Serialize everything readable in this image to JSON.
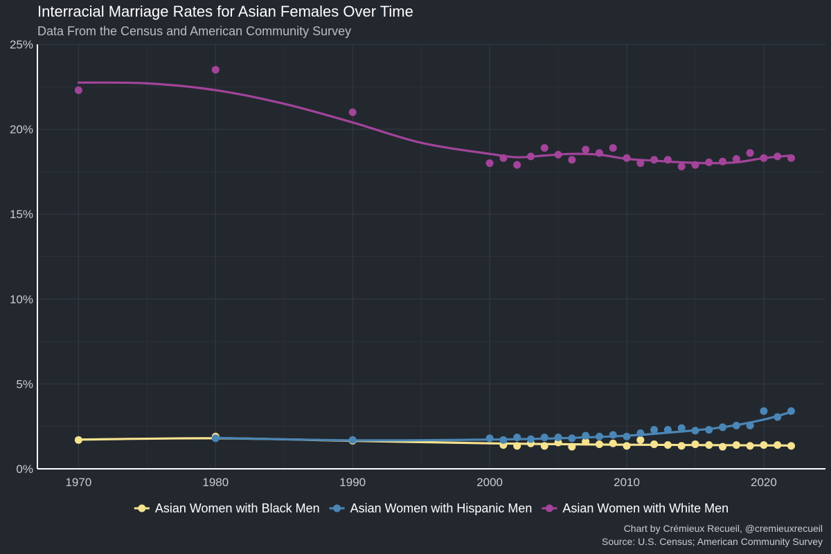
{
  "chart_data": {
    "type": "scatter",
    "title": "Interracial Marriage Rates for Asian Females Over Time",
    "subtitle": "Data From the Census and American Community Survey",
    "xlabel": "",
    "ylabel": "",
    "xlim": [
      1967,
      2024.5
    ],
    "ylim": [
      0,
      25
    ],
    "x_ticks": [
      1970,
      1980,
      1990,
      2000,
      2010,
      2020
    ],
    "y_ticks": [
      0,
      5,
      10,
      15,
      20,
      25
    ],
    "y_tick_labels": [
      "0%",
      "5%",
      "10%",
      "15%",
      "20%",
      "25%"
    ],
    "grid": true,
    "legend_position": "bottom",
    "series": [
      {
        "name": "Asian Women with Black Men",
        "color": "#f7e38f",
        "points": [
          [
            1970,
            1.7
          ],
          [
            1980,
            1.9
          ],
          [
            1990,
            1.65
          ],
          [
            2001,
            1.4
          ],
          [
            2002,
            1.35
          ],
          [
            2003,
            1.5
          ],
          [
            2004,
            1.35
          ],
          [
            2005,
            1.55
          ],
          [
            2006,
            1.3
          ],
          [
            2007,
            1.6
          ],
          [
            2008,
            1.45
          ],
          [
            2009,
            1.5
          ],
          [
            2010,
            1.35
          ],
          [
            2011,
            1.7
          ],
          [
            2012,
            1.45
          ],
          [
            2013,
            1.4
          ],
          [
            2014,
            1.35
          ],
          [
            2015,
            1.45
          ],
          [
            2016,
            1.4
          ],
          [
            2017,
            1.3
          ],
          [
            2018,
            1.4
          ],
          [
            2019,
            1.35
          ],
          [
            2020,
            1.4
          ],
          [
            2021,
            1.4
          ],
          [
            2022,
            1.35
          ]
        ],
        "trend": [
          [
            1970,
            1.72
          ],
          [
            1980,
            1.8
          ],
          [
            1990,
            1.65
          ],
          [
            2000,
            1.5
          ],
          [
            2005,
            1.45
          ],
          [
            2010,
            1.42
          ],
          [
            2015,
            1.4
          ],
          [
            2020,
            1.38
          ],
          [
            2022,
            1.37
          ]
        ]
      },
      {
        "name": "Asian Women with Hispanic Men",
        "color": "#4a86b6",
        "points": [
          [
            1980,
            1.8
          ],
          [
            1990,
            1.7
          ],
          [
            2000,
            1.8
          ],
          [
            2001,
            1.7
          ],
          [
            2002,
            1.85
          ],
          [
            2003,
            1.75
          ],
          [
            2004,
            1.85
          ],
          [
            2005,
            1.85
          ],
          [
            2006,
            1.8
          ],
          [
            2007,
            1.95
          ],
          [
            2008,
            1.9
          ],
          [
            2009,
            2.0
          ],
          [
            2010,
            1.9
          ],
          [
            2011,
            2.1
          ],
          [
            2012,
            2.3
          ],
          [
            2013,
            2.3
          ],
          [
            2014,
            2.4
          ],
          [
            2015,
            2.25
          ],
          [
            2016,
            2.3
          ],
          [
            2017,
            2.45
          ],
          [
            2018,
            2.55
          ],
          [
            2019,
            2.55
          ],
          [
            2020,
            3.4
          ],
          [
            2021,
            3.05
          ],
          [
            2022,
            3.4
          ]
        ],
        "trend": [
          [
            1980,
            1.82
          ],
          [
            1990,
            1.68
          ],
          [
            2000,
            1.72
          ],
          [
            2005,
            1.8
          ],
          [
            2010,
            1.95
          ],
          [
            2014,
            2.2
          ],
          [
            2017,
            2.45
          ],
          [
            2020,
            2.9
          ],
          [
            2022,
            3.35
          ]
        ]
      },
      {
        "name": "Asian Women with White Men",
        "color": "#a3449a",
        "points": [
          [
            1970,
            22.3
          ],
          [
            1980,
            23.5
          ],
          [
            1990,
            21.0
          ],
          [
            2000,
            18.0
          ],
          [
            2001,
            18.3
          ],
          [
            2002,
            17.9
          ],
          [
            2003,
            18.4
          ],
          [
            2004,
            18.9
          ],
          [
            2005,
            18.5
          ],
          [
            2006,
            18.2
          ],
          [
            2007,
            18.8
          ],
          [
            2008,
            18.6
          ],
          [
            2009,
            18.9
          ],
          [
            2010,
            18.3
          ],
          [
            2011,
            18.0
          ],
          [
            2012,
            18.2
          ],
          [
            2013,
            18.2
          ],
          [
            2014,
            17.8
          ],
          [
            2015,
            17.9
          ],
          [
            2016,
            18.05
          ],
          [
            2017,
            18.1
          ],
          [
            2018,
            18.25
          ],
          [
            2019,
            18.6
          ],
          [
            2020,
            18.3
          ],
          [
            2021,
            18.4
          ],
          [
            2022,
            18.3
          ]
        ],
        "trend": [
          [
            1970,
            22.75
          ],
          [
            1975,
            22.7
          ],
          [
            1980,
            22.3
          ],
          [
            1985,
            21.5
          ],
          [
            1990,
            20.4
          ],
          [
            1995,
            19.2
          ],
          [
            2000,
            18.55
          ],
          [
            2002,
            18.35
          ],
          [
            2004,
            18.45
          ],
          [
            2006,
            18.55
          ],
          [
            2008,
            18.5
          ],
          [
            2010,
            18.25
          ],
          [
            2012,
            18.15
          ],
          [
            2014,
            18.05
          ],
          [
            2016,
            18.0
          ],
          [
            2018,
            18.05
          ],
          [
            2020,
            18.3
          ],
          [
            2022,
            18.45
          ]
        ]
      }
    ],
    "caption_line1": "Chart by Crémieux Recueil, @cremieuxrecueil",
    "caption_line2": "Source: U.S. Census; American Community Survey"
  }
}
